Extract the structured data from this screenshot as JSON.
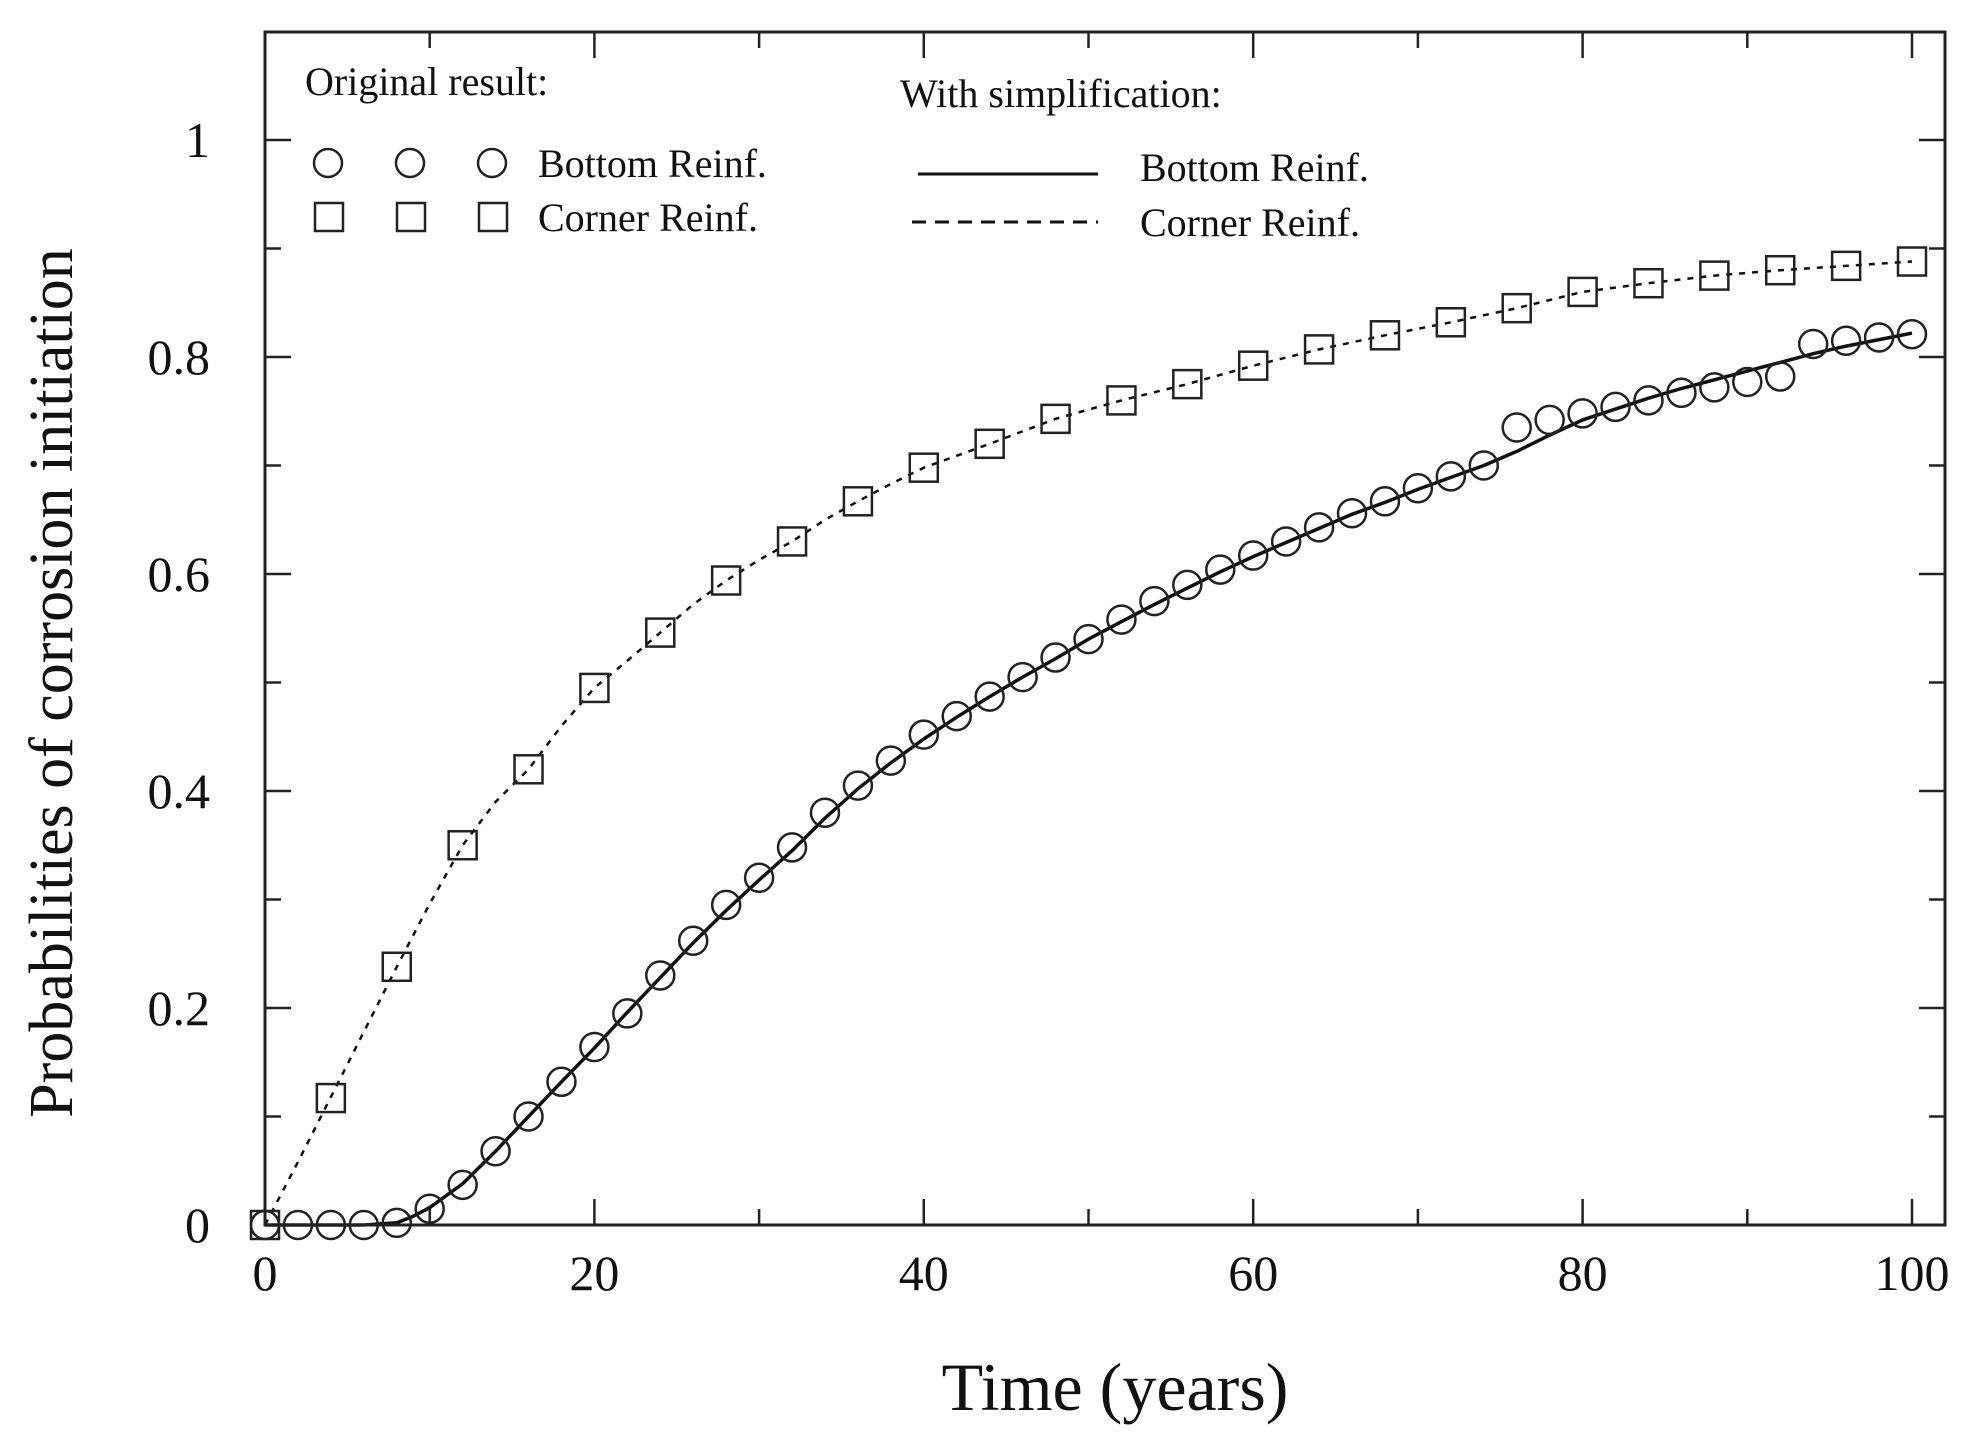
{
  "chart_data": {
    "type": "line",
    "title": "",
    "xlabel": "Time (years)",
    "ylabel": "Probabilities of corrosion initiation",
    "xlim": [
      0,
      102
    ],
    "ylim": [
      0,
      1.1
    ],
    "x_ticks": [
      0,
      20,
      40,
      60,
      80,
      100
    ],
    "x_tick_labels": [
      "0",
      "20",
      "40",
      "60",
      "80",
      "100"
    ],
    "y_ticks": [
      0,
      0.2,
      0.4,
      0.6,
      0.8,
      1
    ],
    "y_tick_labels": [
      "0",
      "0.2",
      "0.4",
      "0.6",
      "0.8",
      "1"
    ],
    "grid": false,
    "legend": {
      "placement": "top",
      "original_heading": "Original result:",
      "simplified_heading": "With simplification:",
      "bottom_label": "Bottom Reinf.",
      "corner_label": "Corner Reinf."
    },
    "series": [
      {
        "name": "Bottom Reinf.",
        "group": "Original result",
        "style": "markers",
        "marker": "circle",
        "x": [
          0,
          2,
          4,
          6,
          8,
          10,
          12,
          14,
          16,
          18,
          20,
          22,
          24,
          26,
          28,
          30,
          32,
          34,
          36,
          38,
          40,
          42,
          44,
          46,
          48,
          50,
          52,
          54,
          56,
          58,
          60,
          62,
          64,
          66,
          68,
          70,
          72,
          74,
          76,
          78,
          80,
          82,
          84,
          86,
          88,
          90,
          92,
          94,
          96,
          98,
          100
        ],
        "y": [
          0,
          0,
          0,
          0,
          0.002,
          0.015,
          0.037,
          0.068,
          0.1,
          0.132,
          0.164,
          0.195,
          0.23,
          0.262,
          0.295,
          0.32,
          0.348,
          0.38,
          0.405,
          0.428,
          0.452,
          0.469,
          0.487,
          0.505,
          0.523,
          0.54,
          0.558,
          0.575,
          0.59,
          0.604,
          0.617,
          0.63,
          0.643,
          0.656,
          0.667,
          0.679,
          0.69,
          0.7,
          0.735,
          0.742,
          0.748,
          0.754,
          0.76,
          0.767,
          0.772,
          0.777,
          0.782,
          0.812,
          0.815,
          0.818,
          0.821
        ]
      },
      {
        "name": "Corner Reinf.",
        "group": "Original result",
        "style": "markers",
        "marker": "square",
        "x": [
          0,
          4,
          8,
          12,
          16,
          20,
          24,
          28,
          32,
          36,
          40,
          44,
          48,
          52,
          56,
          60,
          64,
          68,
          72,
          76,
          80,
          84,
          88,
          92,
          96,
          100
        ],
        "y": [
          0,
          0.117,
          0.238,
          0.35,
          0.42,
          0.495,
          0.546,
          0.594,
          0.63,
          0.667,
          0.698,
          0.72,
          0.743,
          0.76,
          0.775,
          0.792,
          0.807,
          0.82,
          0.832,
          0.845,
          0.86,
          0.868,
          0.875,
          0.88,
          0.884,
          0.888
        ]
      },
      {
        "name": "Bottom Reinf.",
        "group": "With simplification",
        "style": "solid",
        "x": [
          0,
          6,
          8,
          9,
          10,
          12,
          14,
          16,
          18,
          20,
          22,
          24,
          26,
          28,
          30,
          32,
          34,
          36,
          38,
          40,
          42,
          44,
          46,
          48,
          50,
          52,
          54,
          56,
          58,
          60,
          62,
          64,
          66,
          68,
          70,
          72,
          74,
          76,
          78,
          80,
          82,
          84,
          86,
          88,
          90,
          92,
          94,
          96,
          98,
          100
        ],
        "y": [
          0,
          0,
          0.002,
          0.008,
          0.016,
          0.038,
          0.068,
          0.1,
          0.132,
          0.163,
          0.196,
          0.228,
          0.26,
          0.29,
          0.318,
          0.345,
          0.375,
          0.402,
          0.426,
          0.448,
          0.468,
          0.487,
          0.505,
          0.522,
          0.54,
          0.556,
          0.572,
          0.587,
          0.602,
          0.616,
          0.629,
          0.642,
          0.655,
          0.666,
          0.678,
          0.689,
          0.7,
          0.713,
          0.728,
          0.742,
          0.752,
          0.762,
          0.771,
          0.779,
          0.787,
          0.795,
          0.803,
          0.81,
          0.816,
          0.822
        ]
      },
      {
        "name": "Corner Reinf.",
        "group": "With simplification",
        "style": "dashed",
        "x": [
          0,
          2,
          4,
          6,
          8,
          10,
          12,
          14,
          16,
          18,
          20,
          22,
          24,
          26,
          28,
          30,
          32,
          34,
          36,
          38,
          40,
          44,
          48,
          52,
          56,
          60,
          64,
          68,
          72,
          76,
          80,
          84,
          88,
          92,
          96,
          100
        ],
        "y": [
          0,
          0.058,
          0.118,
          0.178,
          0.238,
          0.296,
          0.35,
          0.39,
          0.42,
          0.46,
          0.495,
          0.52,
          0.546,
          0.572,
          0.594,
          0.613,
          0.63,
          0.65,
          0.667,
          0.683,
          0.698,
          0.72,
          0.743,
          0.76,
          0.775,
          0.792,
          0.807,
          0.82,
          0.832,
          0.845,
          0.86,
          0.868,
          0.875,
          0.88,
          0.884,
          0.888
        ]
      }
    ]
  }
}
